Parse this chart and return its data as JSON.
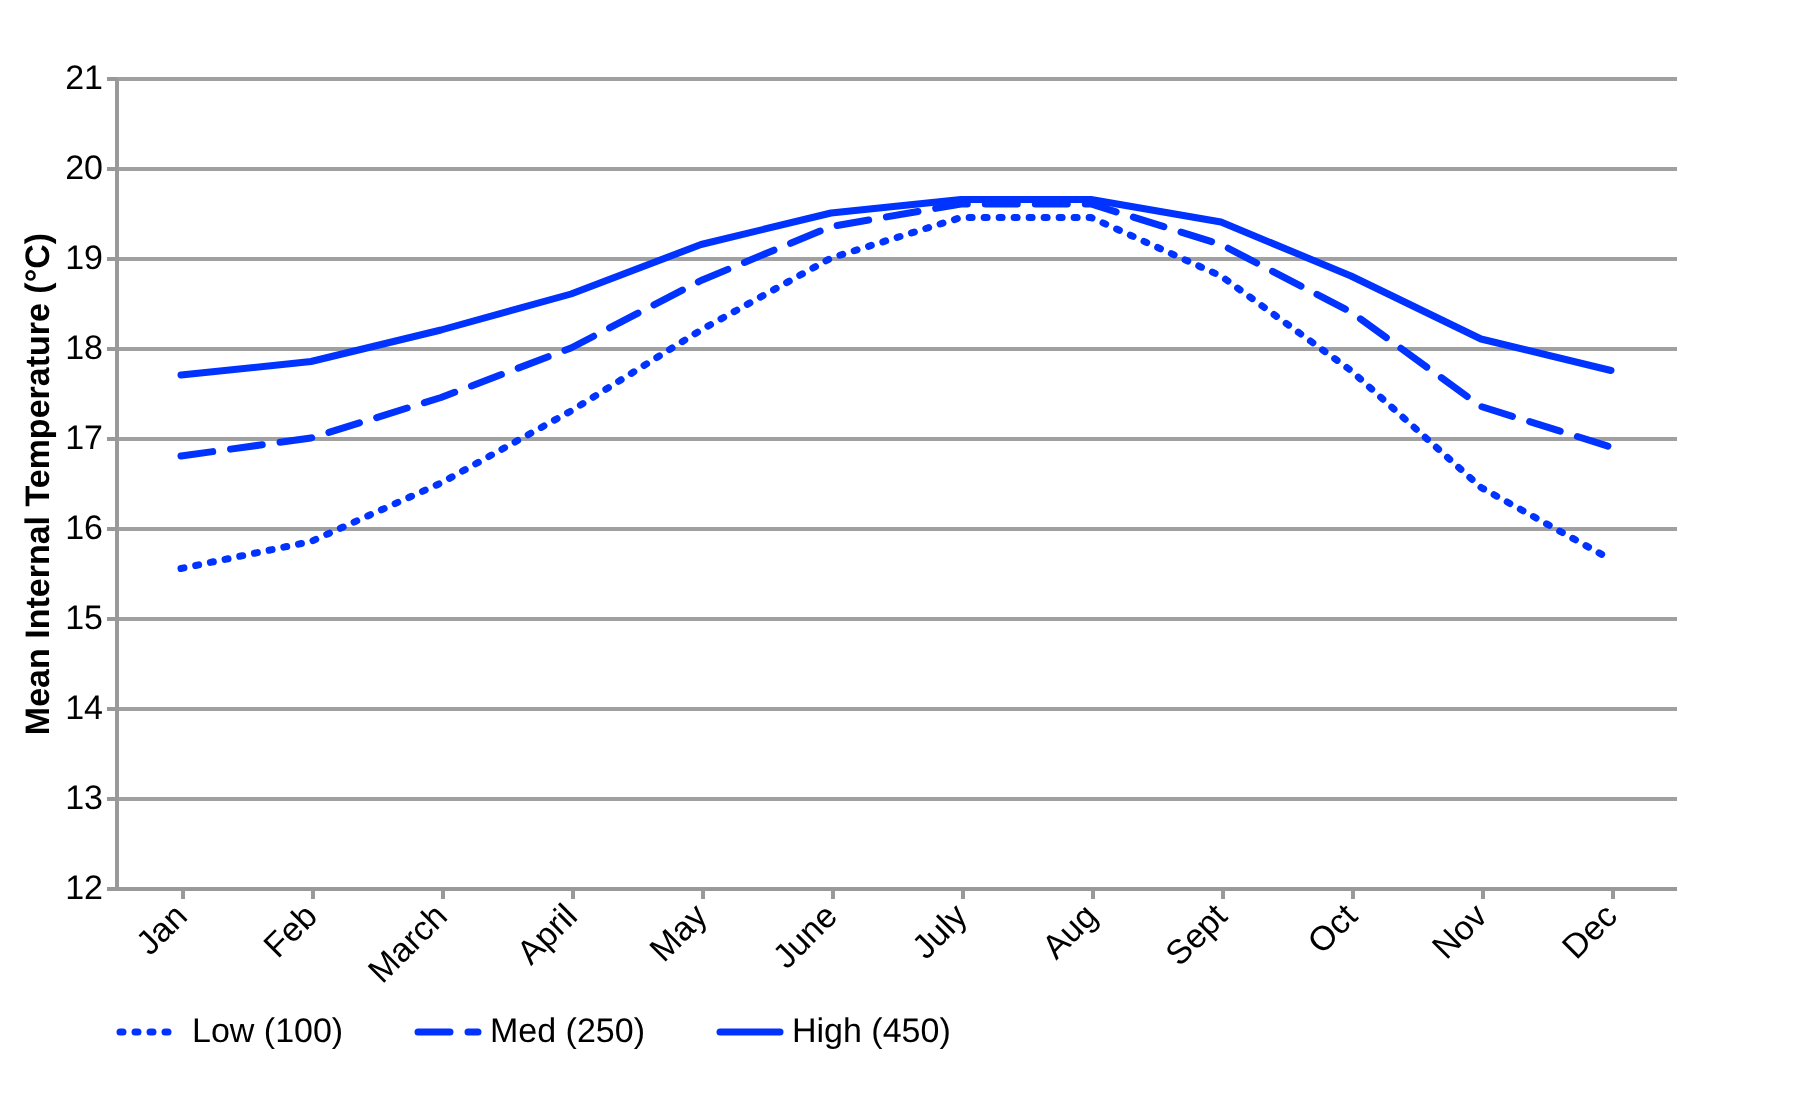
{
  "chart_data": {
    "type": "line",
    "ylabel": "Mean Internal Temperature (°C)",
    "categories": [
      "Jan",
      "Feb",
      "March",
      "April",
      "May",
      "June",
      "July",
      "Aug",
      "Sept",
      "Oct",
      "Nov",
      "Dec"
    ],
    "series": [
      {
        "name": "Low (100)",
        "color": "#0033ff",
        "line_style": "dotted",
        "values": [
          15.55,
          15.85,
          16.5,
          17.3,
          18.2,
          19.0,
          19.45,
          19.45,
          18.8,
          17.75,
          16.45,
          15.65
        ]
      },
      {
        "name": "Med (250)",
        "color": "#0033ff",
        "line_style": "dashed",
        "values": [
          16.8,
          17.0,
          17.45,
          18.0,
          18.75,
          19.35,
          19.6,
          19.6,
          19.15,
          18.4,
          17.35,
          16.9
        ]
      },
      {
        "name": "High (450)",
        "color": "#0033ff",
        "line_style": "solid",
        "values": [
          17.7,
          17.85,
          18.2,
          18.6,
          19.15,
          19.5,
          19.65,
          19.65,
          19.4,
          18.8,
          18.1,
          17.75
        ]
      }
    ],
    "ylim": [
      12,
      21
    ],
    "yticks": [
      12,
      13,
      14,
      15,
      16,
      17,
      18,
      19,
      20,
      21
    ],
    "grid": "y",
    "legend": "bottom",
    "marker": "none"
  }
}
